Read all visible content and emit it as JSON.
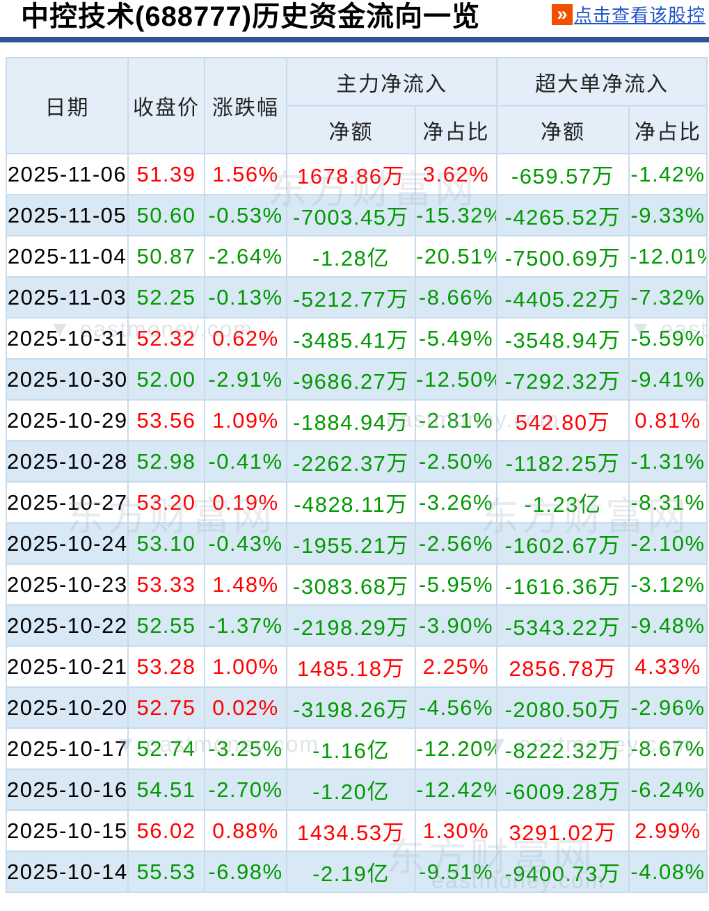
{
  "header": {
    "title": "中控技术(688777)历史资金流向一览",
    "link_label": "点击查看该股控",
    "link_icon": "»"
  },
  "table": {
    "columns": {
      "date": "日期",
      "close": "收盘价",
      "change": "涨跌幅",
      "main_group": "主力净流入",
      "xlarge_group": "超大单净流入",
      "net_amount": "净额",
      "net_ratio": "净占比"
    },
    "rows": [
      {
        "date": "2025-11-06",
        "close": "51.39",
        "change": "1.56%",
        "main_net": "1678.86万",
        "main_ratio": "3.62%",
        "xl_net": "-659.57万",
        "xl_ratio": "-1.42%"
      },
      {
        "date": "2025-11-05",
        "close": "50.60",
        "change": "-0.53%",
        "main_net": "-7003.45万",
        "main_ratio": "-15.32%",
        "xl_net": "-4265.52万",
        "xl_ratio": "-9.33%"
      },
      {
        "date": "2025-11-04",
        "close": "50.87",
        "change": "-2.64%",
        "main_net": "-1.28亿",
        "main_ratio": "-20.51%",
        "xl_net": "-7500.69万",
        "xl_ratio": "-12.01%"
      },
      {
        "date": "2025-11-03",
        "close": "52.25",
        "change": "-0.13%",
        "main_net": "-5212.77万",
        "main_ratio": "-8.66%",
        "xl_net": "-4405.22万",
        "xl_ratio": "-7.32%"
      },
      {
        "date": "2025-10-31",
        "close": "52.32",
        "change": "0.62%",
        "main_net": "-3485.41万",
        "main_ratio": "-5.49%",
        "xl_net": "-3548.94万",
        "xl_ratio": "-5.59%"
      },
      {
        "date": "2025-10-30",
        "close": "52.00",
        "change": "-2.91%",
        "main_net": "-9686.27万",
        "main_ratio": "-12.50%",
        "xl_net": "-7292.32万",
        "xl_ratio": "-9.41%"
      },
      {
        "date": "2025-10-29",
        "close": "53.56",
        "change": "1.09%",
        "main_net": "-1884.94万",
        "main_ratio": "-2.81%",
        "xl_net": "542.80万",
        "xl_ratio": "0.81%"
      },
      {
        "date": "2025-10-28",
        "close": "52.98",
        "change": "-0.41%",
        "main_net": "-2262.37万",
        "main_ratio": "-2.50%",
        "xl_net": "-1182.25万",
        "xl_ratio": "-1.31%"
      },
      {
        "date": "2025-10-27",
        "close": "53.20",
        "change": "0.19%",
        "main_net": "-4828.11万",
        "main_ratio": "-3.26%",
        "xl_net": "-1.23亿",
        "xl_ratio": "-8.31%"
      },
      {
        "date": "2025-10-24",
        "close": "53.10",
        "change": "-0.43%",
        "main_net": "-1955.21万",
        "main_ratio": "-2.56%",
        "xl_net": "-1602.67万",
        "xl_ratio": "-2.10%"
      },
      {
        "date": "2025-10-23",
        "close": "53.33",
        "change": "1.48%",
        "main_net": "-3083.68万",
        "main_ratio": "-5.95%",
        "xl_net": "-1616.36万",
        "xl_ratio": "-3.12%"
      },
      {
        "date": "2025-10-22",
        "close": "52.55",
        "change": "-1.37%",
        "main_net": "-2198.29万",
        "main_ratio": "-3.90%",
        "xl_net": "-5343.22万",
        "xl_ratio": "-9.48%"
      },
      {
        "date": "2025-10-21",
        "close": "53.28",
        "change": "1.00%",
        "main_net": "1485.18万",
        "main_ratio": "2.25%",
        "xl_net": "2856.78万",
        "xl_ratio": "4.33%"
      },
      {
        "date": "2025-10-20",
        "close": "52.75",
        "change": "0.02%",
        "main_net": "-3198.26万",
        "main_ratio": "-4.56%",
        "xl_net": "-2080.50万",
        "xl_ratio": "-2.96%"
      },
      {
        "date": "2025-10-17",
        "close": "52.74",
        "change": "-3.25%",
        "main_net": "-1.16亿",
        "main_ratio": "-12.20%",
        "xl_net": "-8222.32万",
        "xl_ratio": "-8.67%"
      },
      {
        "date": "2025-10-16",
        "close": "54.51",
        "change": "-2.70%",
        "main_net": "-1.20亿",
        "main_ratio": "-12.42%",
        "xl_net": "-6009.28万",
        "xl_ratio": "-6.24%"
      },
      {
        "date": "2025-10-15",
        "close": "56.02",
        "change": "0.88%",
        "main_net": "1434.53万",
        "main_ratio": "1.30%",
        "xl_net": "3291.02万",
        "xl_ratio": "2.99%"
      },
      {
        "date": "2025-10-14",
        "close": "55.53",
        "change": "-6.98%",
        "main_net": "-2.19亿",
        "main_ratio": "-9.51%",
        "xl_net": "-9400.73万",
        "xl_ratio": "-4.08%"
      }
    ]
  },
  "colors": {
    "up": "#ff0000",
    "down": "#009900",
    "divider": "#2f5694",
    "link": "#2053c5",
    "icon_bg": "#f04f00",
    "border": "#c8dbec",
    "row_alt": "#d9e8f5",
    "header_bg": "#e3eef8"
  },
  "watermark": {
    "site_name": "东方财富网",
    "site_domain": "eastmoney.com",
    "triangle_icon": "▼"
  }
}
